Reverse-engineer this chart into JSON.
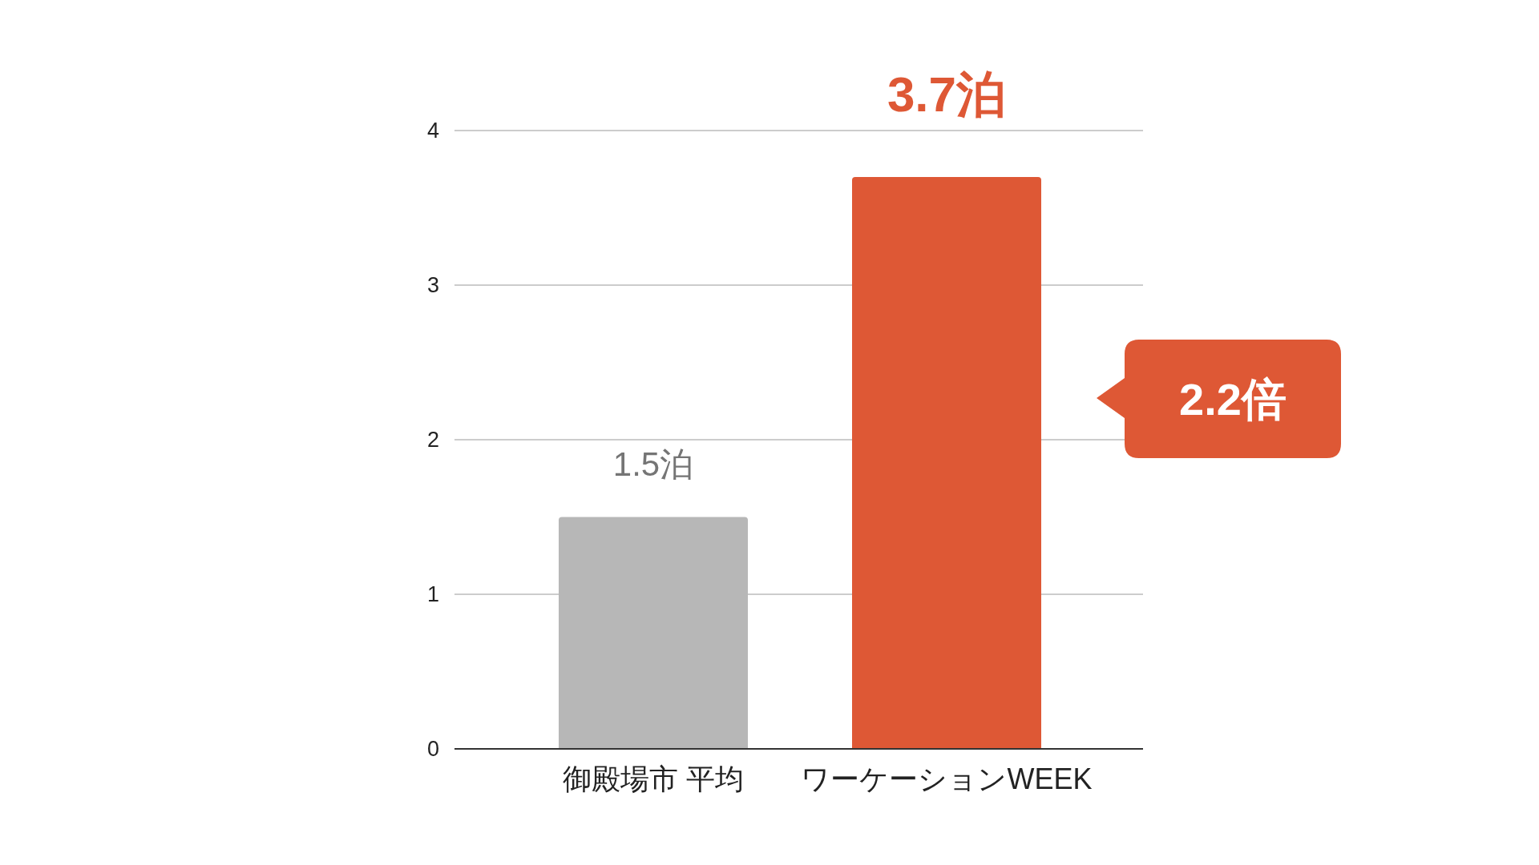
{
  "chart_data": {
    "type": "bar",
    "categories": [
      "御殿場市 平均",
      "ワーケーションWEEK"
    ],
    "values": [
      1.5,
      3.7
    ],
    "colors": [
      "#b7b7b7",
      "#de5835"
    ],
    "value_labels": [
      "1.5泊",
      "3.7泊"
    ],
    "ylim": [
      0,
      4
    ],
    "yticks": [
      0,
      1,
      2,
      3,
      4
    ],
    "grid": "y",
    "annotations": [
      "2.2倍"
    ]
  }
}
